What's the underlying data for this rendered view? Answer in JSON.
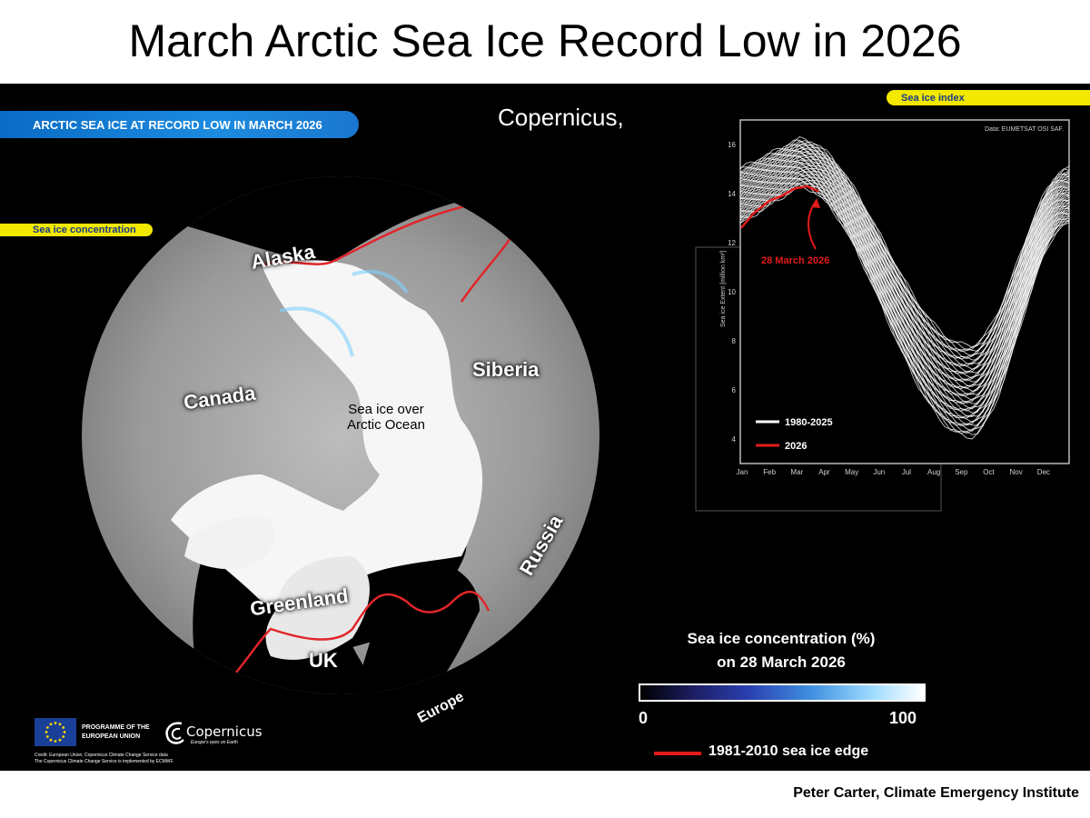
{
  "title": "March Arctic Sea Ice Record Low in 2026",
  "footer": "Peter Carter, Climate Emergency Institute",
  "banner": "ARCTIC SEA ICE AT RECORD LOW IN MARCH 2026",
  "copernicus_caption": "Copernicus,",
  "sea_ice_concentration_tag": "Sea ice concentration",
  "sea_ice_index_tag": "Sea ice index",
  "map": {
    "labels": {
      "alaska": "Alaska",
      "canada": "Canada",
      "siberia": "Siberia",
      "russia": "Russia",
      "greenland": "Greenland",
      "uk": "UK",
      "europe": "Europe",
      "ocean_line1": "Sea ice over",
      "ocean_line2": "Arctic Ocean"
    }
  },
  "legend": {
    "title_line1": "Sea ice concentration (%)",
    "title_line2": "on 28 March 2026",
    "min": "0",
    "max": "100",
    "edge_label": "1981-2010 sea ice edge"
  },
  "logos": {
    "programme_line1": "PROGRAMME OF THE",
    "programme_line2": "EUROPEAN UNION",
    "copernicus": "Copernicus",
    "copernicus_tagline": "Europe's eyes on Earth",
    "credit_line1": "Credit: European Union, Copernicus Climate Change Service data",
    "credit_line2": "The Copernicus Climate Change Service is implemented by ECMWF."
  },
  "chart_data": {
    "type": "line",
    "source_note": "Data: EUMETSAT OSI SAF.",
    "ylabel": "Sea ice Extent [million km²]",
    "ylim": [
      3,
      17
    ],
    "yticks": [
      4,
      6,
      8,
      10,
      12,
      14,
      16
    ],
    "months": [
      "Jan",
      "Feb",
      "Mar",
      "Apr",
      "May",
      "Jun",
      "Jul",
      "Aug",
      "Sep",
      "Oct",
      "Nov",
      "Dec"
    ],
    "annotation": "28 March 2026",
    "legend": [
      {
        "name": "1980-2025",
        "color": "#ffffff"
      },
      {
        "name": "2026",
        "color": "#e21b1b"
      }
    ],
    "series": [
      {
        "name": "2026",
        "color": "#e21b1b",
        "x": [
          1,
          15,
          32,
          46,
          60,
          74,
          87
        ],
        "y": [
          12.6,
          13.2,
          13.7,
          13.9,
          14.2,
          14.3,
          14.1
        ]
      }
    ]
  }
}
